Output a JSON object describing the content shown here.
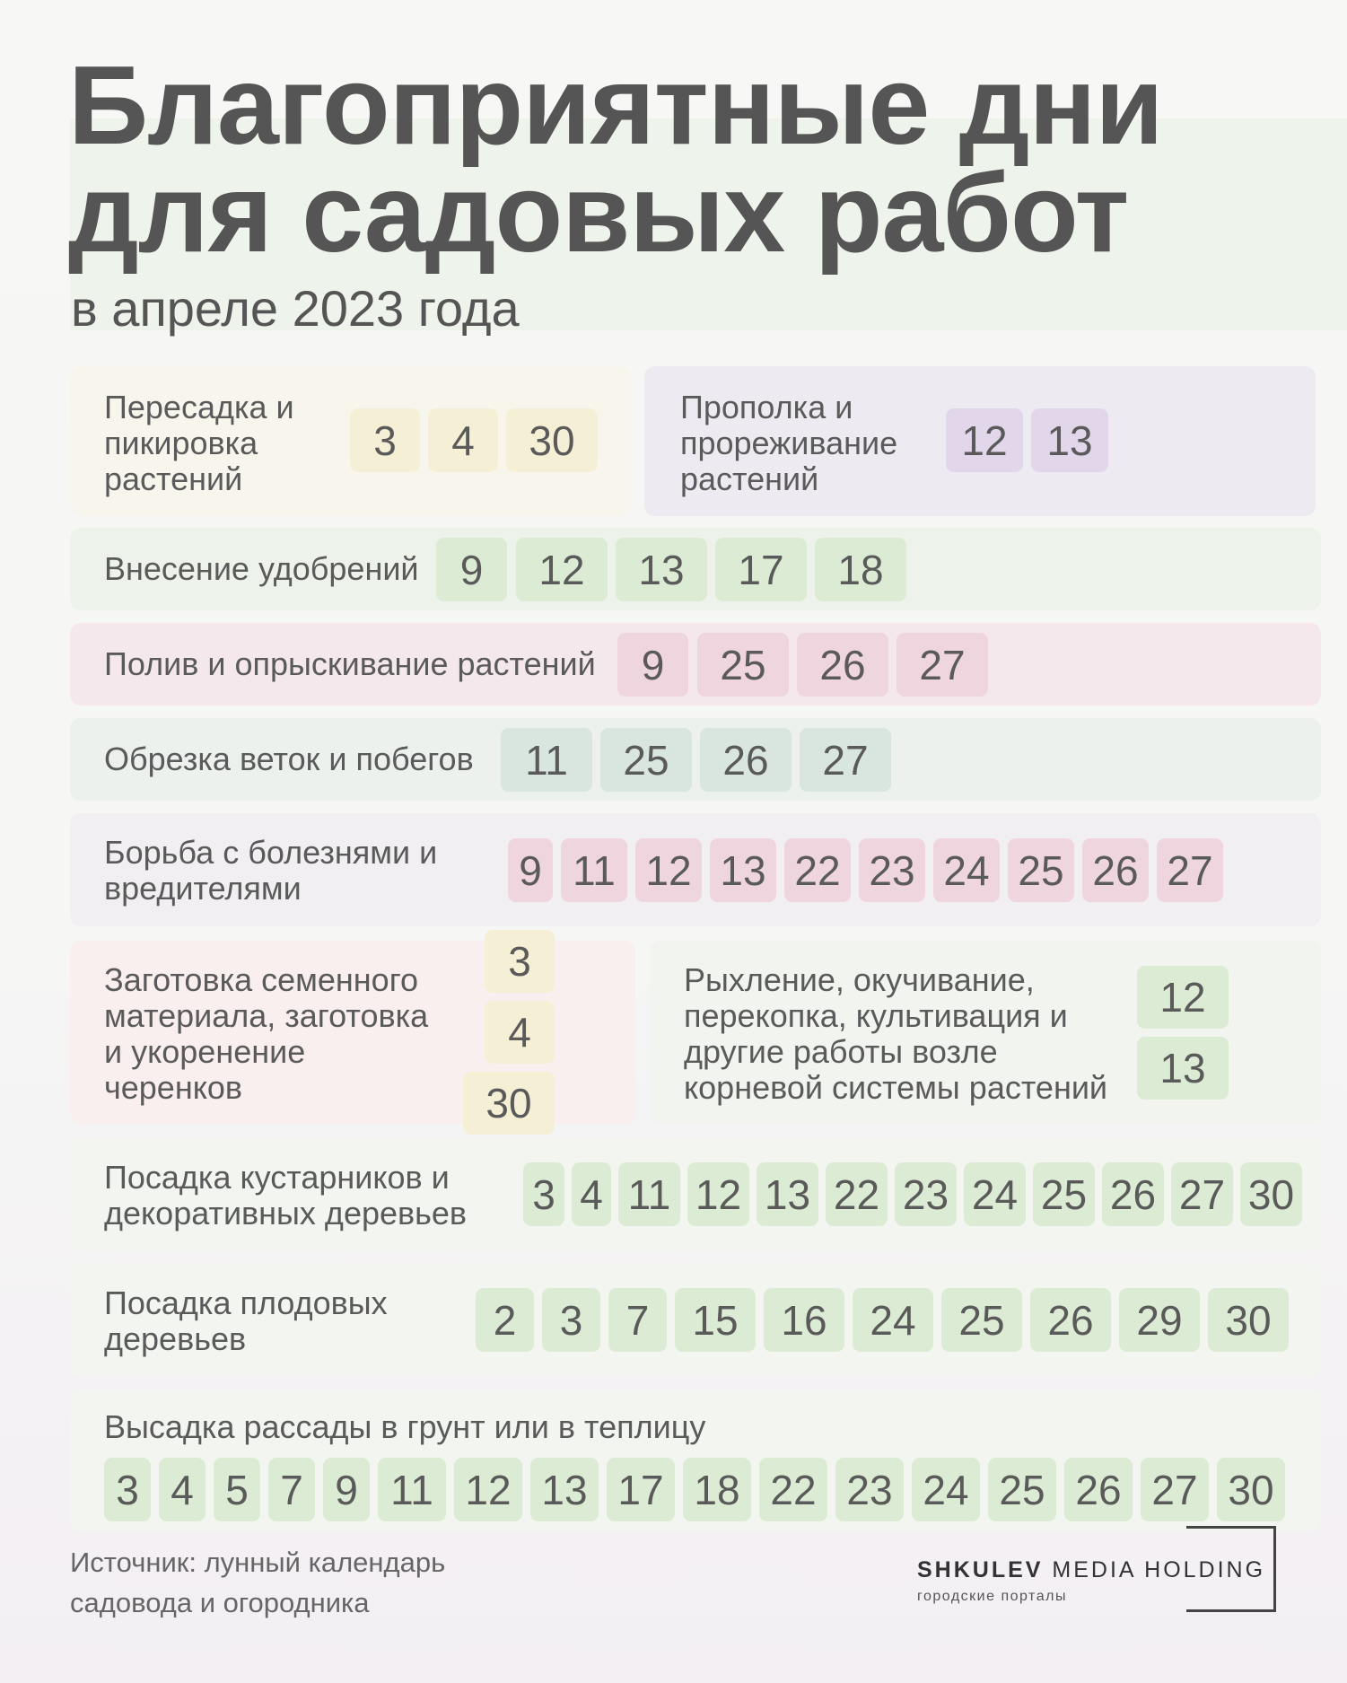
{
  "title": {
    "line1": "Благоприятные дни",
    "line2": "для садовых работ"
  },
  "subtitle": "в апреле 2023 года",
  "colors": {
    "yellow": "#f5f0d5",
    "purple": "#e1d6ea",
    "green": "#dcebd3",
    "pink": "#efd5dd",
    "teal": "#d9e5df",
    "text": "#555555"
  },
  "cards": [
    {
      "label": "Пересадка и\nпикировка\nрастений",
      "days": [
        "3",
        "4",
        "30"
      ]
    },
    {
      "label": "Прополка и\nпрореживание\nрастений",
      "days": [
        "12",
        "13"
      ]
    },
    {
      "label": "Внесение удобрений",
      "days": [
        "9",
        "12",
        "13",
        "17",
        "18"
      ]
    },
    {
      "label": "Полив и опрыскивание растений",
      "days": [
        "9",
        "25",
        "26",
        "27"
      ]
    },
    {
      "label": "Обрезка веток и побегов",
      "days": [
        "11",
        "25",
        "26",
        "27"
      ]
    },
    {
      "label": "Борьба с болезнями и\nвредителями",
      "days": [
        "9",
        "11",
        "12",
        "13",
        "22",
        "23",
        "24",
        "25",
        "26",
        "27"
      ]
    },
    {
      "label": "Заготовка семенного\nматериала, заготовка\nи укоренение\nчеренков",
      "days": [
        "3",
        "4",
        "30"
      ]
    },
    {
      "label": "Рыхление, окучивание,\nперекопка, культивация и\nдругие работы возле\nкорневой системы растений",
      "days": [
        "12",
        "13"
      ]
    },
    {
      "label": "Посадка кустарников и\nдекоративных деревьев",
      "days": [
        "3",
        "4",
        "11",
        "12",
        "13",
        "22",
        "23",
        "24",
        "25",
        "26",
        "27",
        "30"
      ]
    },
    {
      "label": "Посадка плодовых\nдеревьев",
      "days": [
        "2",
        "3",
        "7",
        "15",
        "16",
        "24",
        "25",
        "26",
        "29",
        "30"
      ]
    },
    {
      "label": "Высадка рассады в грунт или в теплицу",
      "days": [
        "3",
        "4",
        "5",
        "7",
        "9",
        "11",
        "12",
        "13",
        "17",
        "18",
        "22",
        "23",
        "24",
        "25",
        "26",
        "27",
        "30"
      ]
    }
  ],
  "footer": {
    "source": "Источник: лунный календарь\nсадовода и огородника",
    "logo_bold": "SHKULEV",
    "logo_rest": " MEDIA HOLDING",
    "logo_sub": "городские порталы"
  }
}
